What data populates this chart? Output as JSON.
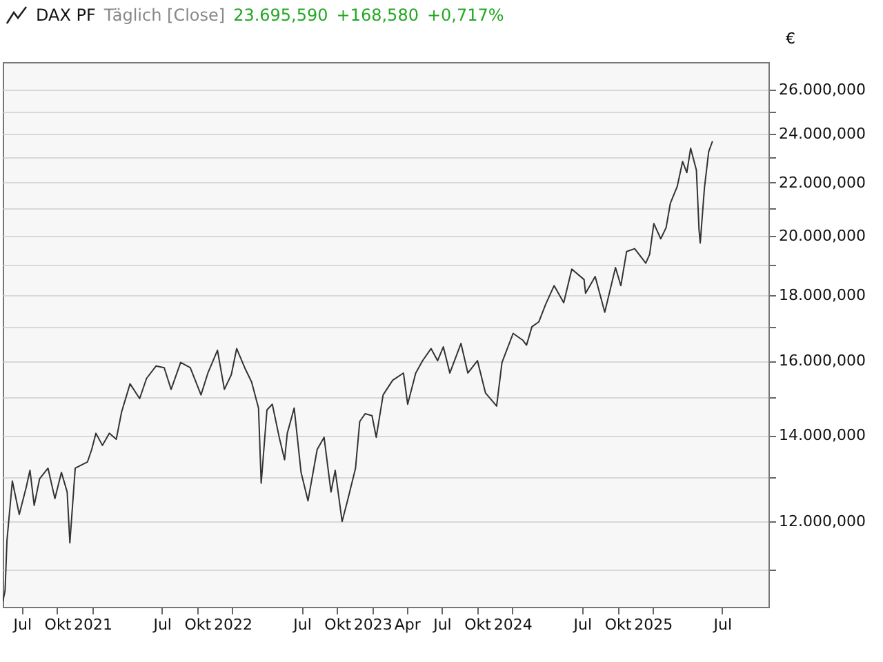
{
  "chart_data": {
    "type": "line",
    "title": "DAX PF",
    "subtitle": "Täglich [Close]",
    "annotations": [
      "23.695,590",
      "+168,580",
      "+0,717%"
    ],
    "ylabel": "€",
    "log": true,
    "grid": "y",
    "marker": "none",
    "line_style": "solid",
    "x": [
      "2020-05-12",
      "2020-05-18",
      "2020-05-23",
      "2020-06-06",
      "2020-06-24",
      "2020-07-12",
      "2020-07-22",
      "2020-08-02",
      "2020-08-16",
      "2020-09-07",
      "2020-09-25",
      "2020-10-12",
      "2020-10-27",
      "2020-11-03",
      "2020-11-17",
      "2020-12-19",
      "2020-12-30",
      "2021-01-10",
      "2021-01-27",
      "2021-02-14",
      "2021-03-04",
      "2021-03-18",
      "2021-04-09",
      "2021-05-04",
      "2021-05-22",
      "2021-06-16",
      "2021-07-07",
      "2021-07-25",
      "2021-08-19",
      "2021-09-13",
      "2021-10-11",
      "2021-10-29",
      "2021-11-23",
      "2021-12-11",
      "2021-12-29",
      "2022-01-12",
      "2022-02-02",
      "2022-02-20",
      "2022-03-10",
      "2022-03-17",
      "2022-04-01",
      "2022-04-15",
      "2022-05-03",
      "2022-05-17",
      "2022-05-24",
      "2022-06-11",
      "2022-06-29",
      "2022-07-17",
      "2022-08-10",
      "2022-08-28",
      "2022-09-15",
      "2022-09-26",
      "2022-10-14",
      "2022-10-28",
      "2022-11-18",
      "2022-11-29",
      "2022-12-13",
      "2022-12-31",
      "2023-01-11",
      "2023-01-29",
      "2023-02-23",
      "2023-03-23",
      "2023-04-03",
      "2023-04-24",
      "2023-05-12",
      "2023-06-03",
      "2023-06-20",
      "2023-07-05",
      "2023-07-22",
      "2023-08-20",
      "2023-09-07",
      "2023-10-02",
      "2023-10-23",
      "2023-11-21",
      "2023-12-05",
      "2024-01-03",
      "2024-01-28",
      "2024-02-07",
      "2024-02-21",
      "2024-03-10",
      "2024-03-28",
      "2024-04-19",
      "2024-05-14",
      "2024-06-04",
      "2024-07-06",
      "2024-07-10",
      "2024-08-04",
      "2024-08-29",
      "2024-09-26",
      "2024-10-10",
      "2024-10-25",
      "2024-11-15",
      "2024-12-14",
      "2024-12-24",
      "2025-01-04",
      "2025-01-22",
      "2025-02-05",
      "2025-02-16",
      "2025-03-06",
      "2025-03-20",
      "2025-03-31",
      "2025-04-10",
      "2025-04-25",
      "2025-05-02",
      "2025-05-05",
      "2025-05-16",
      "2025-05-27",
      "2025-06-06"
    ],
    "series": [
      {
        "color": "#333333",
        "values": [
          10400,
          10600,
          11600,
          12900,
          12150,
          12750,
          13150,
          12350,
          12950,
          13200,
          12500,
          13100,
          12650,
          11550,
          13200,
          13350,
          13650,
          14050,
          13750,
          14050,
          13900,
          14600,
          15350,
          14950,
          15500,
          15850,
          15800,
          15200,
          15950,
          15800,
          15050,
          15650,
          16300,
          15200,
          15600,
          16350,
          15800,
          15400,
          14700,
          12850,
          14650,
          14800,
          13950,
          13400,
          14050,
          14700,
          13100,
          12450,
          13650,
          13950,
          12650,
          13150,
          12000,
          12450,
          13200,
          14350,
          14550,
          14500,
          13950,
          15050,
          15450,
          15650,
          14800,
          15650,
          16000,
          16350,
          16000,
          16400,
          15650,
          16500,
          15650,
          16000,
          15100,
          14750,
          15950,
          16800,
          16600,
          16450,
          17000,
          17150,
          17700,
          18300,
          17750,
          18850,
          18500,
          18050,
          18600,
          17450,
          18900,
          18300,
          19450,
          19550,
          19050,
          19350,
          20450,
          19900,
          20300,
          21200,
          21850,
          22850,
          22400,
          23400,
          22500,
          20200,
          19750,
          21800,
          23250,
          23695.59
        ]
      }
    ],
    "xlim": [
      "2020-05-12",
      "2025-10-30"
    ],
    "xticks": [
      {
        "value": "2020-07-01",
        "label": "Jul"
      },
      {
        "value": "2020-10-01",
        "label": "Okt"
      },
      {
        "value": "2021-01-01",
        "label": "2021"
      },
      {
        "value": "2021-07-01",
        "label": "Jul"
      },
      {
        "value": "2021-10-01",
        "label": "Okt"
      },
      {
        "value": "2022-01-01",
        "label": "2022"
      },
      {
        "value": "2022-07-01",
        "label": "Jul"
      },
      {
        "value": "2022-10-01",
        "label": "Okt"
      },
      {
        "value": "2023-01-01",
        "label": "2023"
      },
      {
        "value": "2023-04-01",
        "label": "Apr"
      },
      {
        "value": "2023-07-01",
        "label": "Jul"
      },
      {
        "value": "2023-10-01",
        "label": "Okt"
      },
      {
        "value": "2024-01-01",
        "label": "2024"
      },
      {
        "value": "2024-07-01",
        "label": "Jul"
      },
      {
        "value": "2024-10-01",
        "label": "Okt"
      },
      {
        "value": "2025-01-01",
        "label": "2025"
      },
      {
        "value": "2025-07-01",
        "label": "Jul"
      }
    ],
    "ylim": [
      10300,
      27300
    ],
    "yticks": [
      {
        "value": 11000,
        "label": null
      },
      {
        "value": 12000,
        "label": "12.000,000"
      },
      {
        "value": 13000,
        "label": null
      },
      {
        "value": 14000,
        "label": "14.000,000"
      },
      {
        "value": 15000,
        "label": null
      },
      {
        "value": 16000,
        "label": "16.000,000"
      },
      {
        "value": 17000,
        "label": null
      },
      {
        "value": 18000,
        "label": "18.000,000"
      },
      {
        "value": 19000,
        "label": null
      },
      {
        "value": 20000,
        "label": "20.000,000"
      },
      {
        "value": 21000,
        "label": null
      },
      {
        "value": 22000,
        "label": "22.000,000"
      },
      {
        "value": 23000,
        "label": null
      },
      {
        "value": 24000,
        "label": "24.000,000"
      },
      {
        "value": 25000,
        "label": null
      },
      {
        "value": 26000,
        "label": "26.000,000"
      }
    ]
  }
}
